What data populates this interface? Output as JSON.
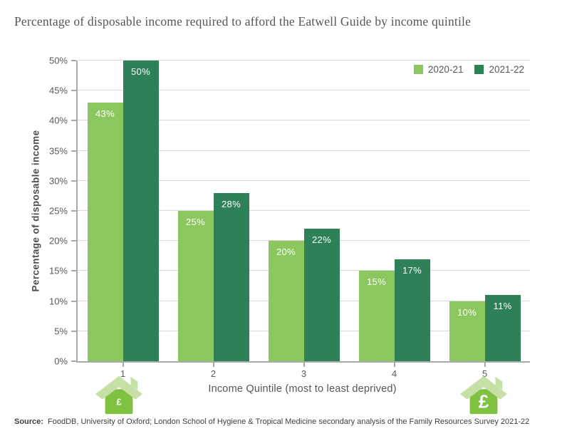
{
  "title": "Percentage of disposable income required to afford the Eatwell Guide by income quintile",
  "chart_data": {
    "type": "bar",
    "categories": [
      "1",
      "2",
      "3",
      "4",
      "5"
    ],
    "series": [
      {
        "name": "2020-21",
        "color": "#8bc65e",
        "values": [
          43,
          25,
          20,
          15,
          10
        ],
        "labels": [
          "43%",
          "25%",
          "20%",
          "15%",
          "10%"
        ]
      },
      {
        "name": "2021-22",
        "color": "#2e8156",
        "values": [
          50,
          28,
          22,
          17,
          11
        ],
        "labels": [
          "50%",
          "28%",
          "22%",
          "17%",
          "11%"
        ]
      }
    ],
    "xlabel": "Income Quintile (most to least deprived)",
    "ylabel": "Percentage of disposable income",
    "ylim": [
      0,
      50
    ],
    "ytick_step": 5,
    "ytick_labels": [
      "0%",
      "5%",
      "10%",
      "15%",
      "20%",
      "25%",
      "30%",
      "35%",
      "40%",
      "45%",
      "50%"
    ],
    "grid": true,
    "legend_position": "top-right",
    "bar_label_color": "#ffffff"
  },
  "house_icons": {
    "pound_symbol": "£",
    "body_color": "#7fc242",
    "roof_color": "#c5e0a4",
    "left_meaning": "most deprived (small pound)",
    "right_meaning": "least deprived (large pound)"
  },
  "source": {
    "label": "Source:",
    "text": " FoodDB, University of Oxford; London School of Hygiene & Tropical Medicine secondary analysis of the Family Resources Survey 2021-22"
  }
}
